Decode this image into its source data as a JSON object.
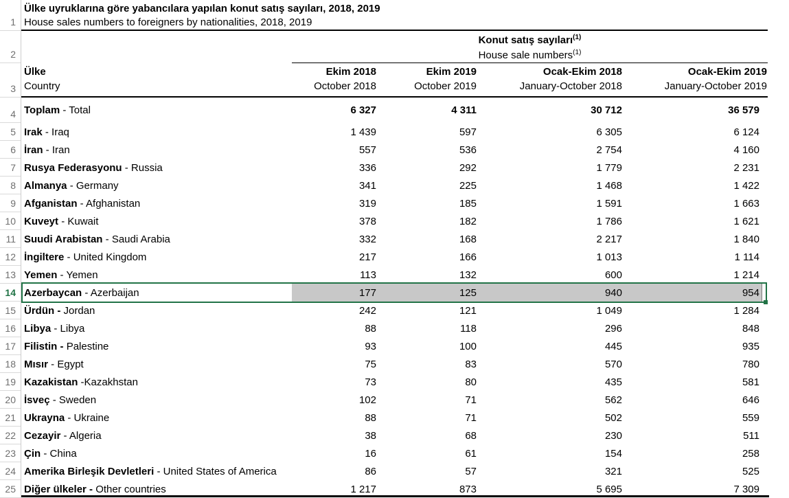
{
  "title": {
    "tr": "Ülke uyruklarına göre yabancılara yapılan konut satış sayıları, 2018, 2019",
    "en": "House sales numbers to foreigners by nationalities, 2018, 2019"
  },
  "group_header": {
    "tr": "Konut satış sayıları",
    "en": "House sale numbers",
    "footnote": "(1)"
  },
  "columns": {
    "country": {
      "tr": "Ülke",
      "en": "Country"
    },
    "cols": [
      {
        "tr": "Ekim 2018",
        "en": "October 2018"
      },
      {
        "tr": "Ekim 2019",
        "en": "October 2019"
      },
      {
        "tr": "Ocak-Ekim 2018",
        "en": "January-October 2018"
      },
      {
        "tr": "Ocak-Ekim 2019",
        "en": "January-October 2019"
      }
    ]
  },
  "gutter": {
    "row_numbers": [
      "1",
      "2",
      "3",
      "4",
      "5",
      "6",
      "7",
      "8",
      "9",
      "10",
      "11",
      "12",
      "13",
      "14",
      "15",
      "16",
      "17",
      "18",
      "19",
      "20",
      "21",
      "22",
      "23",
      "24",
      "25"
    ],
    "selected_row_number": "14"
  },
  "table": {
    "rows": [
      {
        "no": "4",
        "tr": "Toplam",
        "sep": " - ",
        "en": "Total",
        "bold_values": true,
        "values": [
          "6 327",
          "4 311",
          "30 712",
          "36 579"
        ]
      },
      {
        "no": "5",
        "tr": "Irak",
        "sep": " - ",
        "en": "Iraq",
        "values": [
          "1 439",
          "597",
          "6 305",
          "6 124"
        ]
      },
      {
        "no": "6",
        "tr": "İran",
        "sep": " - ",
        "en": "Iran",
        "values": [
          "557",
          "536",
          "2 754",
          "4 160"
        ]
      },
      {
        "no": "7",
        "tr": "Rusya Federasyonu",
        "sep": " - ",
        "en": "Russia",
        "values": [
          "336",
          "292",
          "1 779",
          "2 231"
        ]
      },
      {
        "no": "8",
        "tr": "Almanya",
        "sep": " - ",
        "en": "Germany",
        "values": [
          "341",
          "225",
          "1 468",
          "1 422"
        ]
      },
      {
        "no": "9",
        "tr": "Afganistan",
        "sep": " - ",
        "en": "Afghanistan",
        "values": [
          "319",
          "185",
          "1 591",
          "1 663"
        ]
      },
      {
        "no": "10",
        "tr": "Kuveyt",
        "sep": " - ",
        "en": "Kuwait",
        "values": [
          "378",
          "182",
          "1 786",
          "1 621"
        ]
      },
      {
        "no": "11",
        "tr": "Suudi Arabistan",
        "sep": " - ",
        "en": "Saudi Arabia",
        "values": [
          "332",
          "168",
          "2 217",
          "1 840"
        ]
      },
      {
        "no": "12",
        "tr": "İngiltere",
        "sep": " - ",
        "en": "United Kingdom",
        "values": [
          "217",
          "166",
          "1 013",
          "1 114"
        ]
      },
      {
        "no": "13",
        "tr": "Yemen",
        "sep": " - ",
        "en": "Yemen",
        "values": [
          "113",
          "132",
          "600",
          "1 214"
        ]
      },
      {
        "no": "14",
        "tr": "Azerbaycan",
        "sep": " - ",
        "en": "Azerbaijan",
        "selected": true,
        "values": [
          "177",
          "125",
          "940",
          "954"
        ]
      },
      {
        "no": "15",
        "tr": "Ürdün",
        "sep": " - ",
        "en": "Jordan",
        "sep_bold": true,
        "values": [
          "242",
          "121",
          "1 049",
          "1 284"
        ]
      },
      {
        "no": "16",
        "tr": "Libya",
        "sep": " - ",
        "en": "Libya",
        "values": [
          "88",
          "118",
          "296",
          "848"
        ]
      },
      {
        "no": "17",
        "tr": "Filistin",
        "sep": " - ",
        "en": "Palestine",
        "sep_bold": true,
        "values": [
          "93",
          "100",
          "445",
          "935"
        ]
      },
      {
        "no": "18",
        "tr": "Mısır",
        "sep": " - ",
        "en": "Egypt",
        "values": [
          "75",
          "83",
          "570",
          "780"
        ]
      },
      {
        "no": "19",
        "tr": "Kazakistan",
        "sep": " -",
        "en": "Kazakhstan",
        "values": [
          "73",
          "80",
          "435",
          "581"
        ]
      },
      {
        "no": "20",
        "tr": "İsveç",
        "sep": " - ",
        "en": "Sweden",
        "values": [
          "102",
          "71",
          "562",
          "646"
        ]
      },
      {
        "no": "21",
        "tr": "Ukrayna",
        "sep": " - ",
        "en": "Ukraine",
        "values": [
          "88",
          "71",
          "502",
          "559"
        ]
      },
      {
        "no": "22",
        "tr": "Cezayir",
        "sep": " - ",
        "en": "Algeria",
        "values": [
          "38",
          "68",
          "230",
          "511"
        ]
      },
      {
        "no": "23",
        "tr": "Çin",
        "sep": " - ",
        "en": "China",
        "values": [
          "16",
          "61",
          "154",
          "258"
        ]
      },
      {
        "no": "24",
        "tr": "Amerika Birleşik Devletleri",
        "sep": " - ",
        "en": "United States of America",
        "values": [
          "86",
          "57",
          "321",
          "525"
        ]
      },
      {
        "no": "25",
        "tr": "Diğer ülkeler",
        "sep": " - ",
        "en": "Other countries",
        "sep_bold": true,
        "values": [
          "1 217",
          "873",
          "5 695",
          "7 309"
        ]
      }
    ]
  },
  "colors": {
    "selection_green": "#217346",
    "selected_cell_fill": "#c8c8c8",
    "row_number_gray": "#6e6e6e"
  }
}
